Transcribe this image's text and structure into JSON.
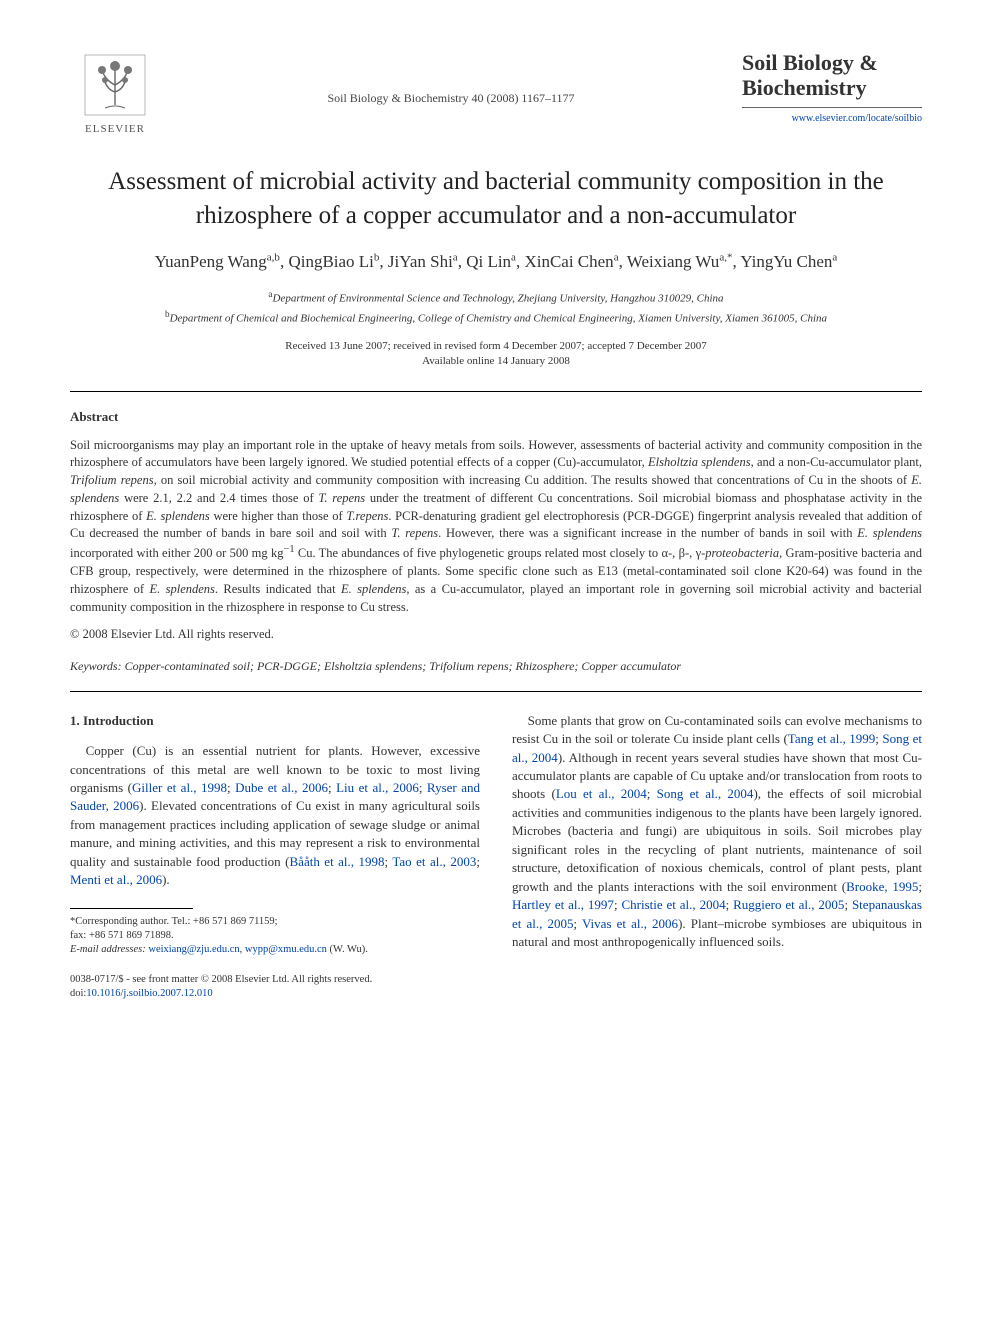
{
  "header": {
    "publisher": "ELSEVIER",
    "citation": "Soil Biology & Biochemistry 40 (2008) 1167–1177",
    "journal_name": "Soil Biology & Biochemistry",
    "journal_url": "www.elsevier.com/locate/soilbio"
  },
  "title": "Assessment of microbial activity and bacterial community composition in the rhizosphere of a copper accumulator and a non-accumulator",
  "authors_html": "YuanPeng Wang<sup>a,b</sup>, QingBiao Li<sup>b</sup>, JiYan Shi<sup>a</sup>, Qi Lin<sup>a</sup>, XinCai Chen<sup>a</sup>, Weixiang Wu<sup>a,*</sup>, YingYu Chen<sup>a</sup>",
  "affiliations": [
    {
      "marker": "a",
      "text": "Department of Environmental Science and Technology, Zhejiang University, Hangzhou 310029, China"
    },
    {
      "marker": "b",
      "text": "Department of Chemical and Biochemical Engineering, College of Chemistry and Chemical Engineering, Xiamen University, Xiamen 361005, China"
    }
  ],
  "dates": {
    "line1": "Received 13 June 2007; received in revised form 4 December 2007; accepted 7 December 2007",
    "line2": "Available online 14 January 2008"
  },
  "abstract": {
    "heading": "Abstract",
    "body_html": "Soil microorganisms may play an important role in the uptake of heavy metals from soils. However, assessments of bacterial activity and community composition in the rhizosphere of accumulators have been largely ignored. We studied potential effects of a copper (Cu)-accumulator, <i>Elsholtzia splendens</i>, and a non-Cu-accumulator plant, <i>Trifolium repens</i>, on soil microbial activity and community composition with increasing Cu addition. The results showed that concentrations of Cu in the shoots of <i>E. splendens</i> were 2.1, 2.2 and 2.4 times those of <i>T. repens</i> under the treatment of different Cu concentrations. Soil microbial biomass and phosphatase activity in the rhizosphere of <i>E. splendens</i> were higher than those of <i>T.repens</i>. PCR-denaturing gradient gel electrophoresis (PCR-DGGE) fingerprint analysis revealed that addition of Cu decreased the number of bands in bare soil and soil with <i>T. repens</i>. However, there was a significant increase in the number of bands in soil with <i>E. splendens</i> incorporated with either 200 or 500 mg kg<sup>−1</sup> Cu. The abundances of five phylogenetic groups related most closely to α-, β-, γ-<i>proteobacteria</i>, Gram-positive bacteria and CFB group, respectively, were determined in the rhizosphere of plants. Some specific clone such as E13 (metal-contaminated soil clone K20-64) was found in the rhizosphere of <i>E. splendens</i>. Results indicated that <i>E. splendens</i>, as a Cu-accumulator, played an important role in governing soil microbial activity and bacterial community composition in the rhizosphere in response to Cu stress.",
    "copyright": "© 2008 Elsevier Ltd. All rights reserved."
  },
  "keywords": {
    "label": "Keywords:",
    "text": "Copper-contaminated soil; PCR-DGGE; Elsholtzia splendens; Trifolium repens; Rhizosphere; Copper accumulator"
  },
  "section1": {
    "heading": "1. Introduction",
    "left_html": "Copper (Cu) is an essential nutrient for plants. However, excessive concentrations of this metal are well known to be toxic to most living organisms (<span class=\"cite\">Giller et al., 1998</span>; <span class=\"cite\">Dube et al., 2006</span>; <span class=\"cite\">Liu et al., 2006</span>; <span class=\"cite\">Ryser and Sauder, 2006</span>). Elevated concentrations of Cu exist in many agricultural soils from management practices including application of sewage sludge or animal manure, and mining activities, and this may represent a risk to environmental quality and sustainable food production (<span class=\"cite\">Bååth et al., 1998</span>; <span class=\"cite\">Tao et al., 2003</span>; <span class=\"cite\">Menti et al., 2006</span>).",
    "right_html": "Some plants that grow on Cu-contaminated soils can evolve mechanisms to resist Cu in the soil or tolerate Cu inside plant cells (<span class=\"cite\">Tang et al., 1999</span>; <span class=\"cite\">Song et al., 2004</span>). Although in recent years several studies have shown that most Cu-accumulator plants are capable of Cu uptake and/or translocation from roots to shoots (<span class=\"cite\">Lou et al., 2004</span>; <span class=\"cite\">Song et al., 2004</span>), the effects of soil microbial activities and communities indigenous to the plants have been largely ignored. Microbes (bacteria and fungi) are ubiquitous in soils. Soil microbes play significant roles in the recycling of plant nutrients, maintenance of soil structure, detoxification of noxious chemicals, control of plant pests, plant growth and the plants interactions with the soil environment (<span class=\"cite\">Brooke, 1995</span>; <span class=\"cite\">Hartley et al., 1997</span>; <span class=\"cite\">Christie et al., 2004</span>; <span class=\"cite\">Ruggiero et al., 2005</span>; <span class=\"cite\">Stepanauskas et al., 2005</span>; <span class=\"cite\">Vivas et al., 2006</span>). Plant–microbe symbioses are ubiquitous in natural and most anthropogenically influenced soils."
  },
  "footnotes": {
    "corr": "*Corresponding author. Tel.: +86 571 869 71159;",
    "fax": "fax: +86 571 869 71898.",
    "email_label": "E-mail addresses:",
    "email1": "weixiang@zju.edu.cn",
    "email_sep": ", ",
    "email2": "wypp@xmu.edu.cn",
    "email_tail": " (W. Wu)."
  },
  "bottom": {
    "line1": "0038-0717/$ - see front matter © 2008 Elsevier Ltd. All rights reserved.",
    "doi_label": "doi:",
    "doi": "10.1016/j.soilbio.2007.12.010"
  },
  "colors": {
    "link": "#0044aa",
    "text": "#333333",
    "rule": "#000000"
  }
}
